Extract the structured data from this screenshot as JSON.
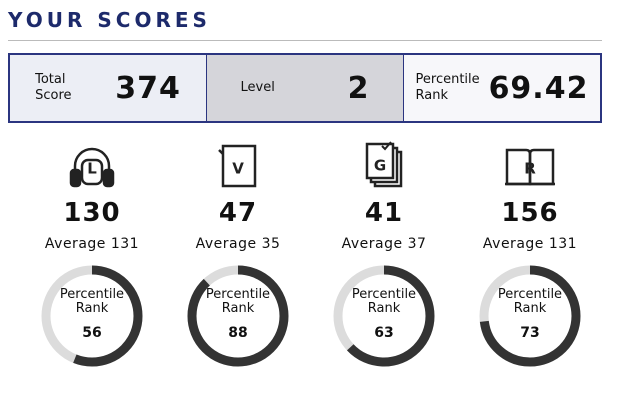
{
  "header": {
    "title": "YOUR SCORES"
  },
  "summary": [
    {
      "label": "Total Score",
      "value": "374"
    },
    {
      "label": "Level",
      "value": "2"
    },
    {
      "label": "Percentile Rank",
      "value": "69.42"
    }
  ],
  "sections": [
    {
      "icon": "L",
      "score": "130",
      "average_label": "Average",
      "average": "131",
      "percentile_label": "Percentile Rank",
      "percentile": 56
    },
    {
      "icon": "V",
      "score": "47",
      "average_label": "Average",
      "average": "35",
      "percentile_label": "Percentile Rank",
      "percentile": 88
    },
    {
      "icon": "G",
      "score": "41",
      "average_label": "Average",
      "average": "37",
      "percentile_label": "Percentile Rank",
      "percentile": 63
    },
    {
      "icon": "R",
      "score": "156",
      "average_label": "Average",
      "average": "131",
      "percentile_label": "Percentile Rank",
      "percentile": 73
    }
  ]
}
